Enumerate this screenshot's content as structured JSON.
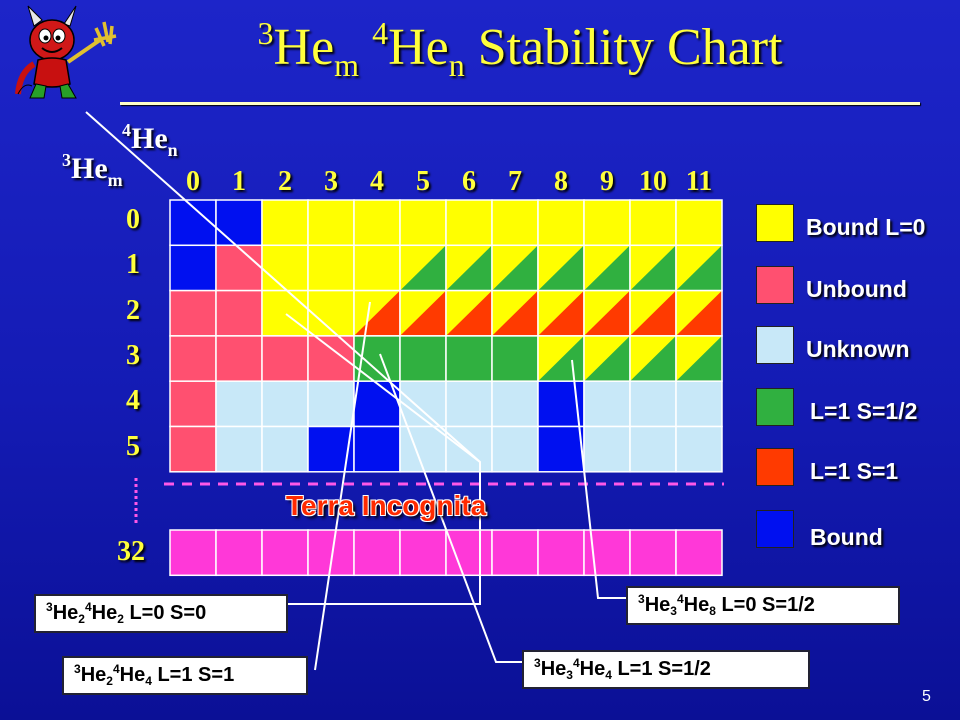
{
  "title": {
    "sup_a": "3",
    "base_a": "He",
    "sub_a": "m",
    "sup_b": "4",
    "base_b": "He",
    "sub_b": "n",
    "rest": " Stability Chart"
  },
  "axis": {
    "col_label": {
      "sup": "4",
      "base": "He",
      "sub": "n"
    },
    "row_label": {
      "sup": "3",
      "base": "He",
      "sub": "m"
    }
  },
  "columns": [
    "0",
    "1",
    "2",
    "3",
    "4",
    "5",
    "6",
    "7",
    "8",
    "9",
    "10",
    "11"
  ],
  "rows": [
    "0",
    "1",
    "2",
    "3",
    "4",
    "5"
  ],
  "extra_row": "32",
  "colors": {
    "Y": "#ffff00",
    "P": "#ff5070",
    "L": "#c8e8f8",
    "G": "#30b040",
    "R": "#ff3a00",
    "B": "#0010f0",
    "M": "#ff38d8",
    "grid": "#ffffff"
  },
  "grid": [
    [
      "B",
      "B",
      "Y",
      "Y",
      "Y",
      "Y",
      "Y",
      "Y",
      "Y",
      "Y",
      "Y",
      "Y"
    ],
    [
      "B",
      "P",
      "Y",
      "Y",
      "Y",
      "YG",
      "YG",
      "YG",
      "YG",
      "YG",
      "YG",
      "YG"
    ],
    [
      "P",
      "P",
      "Y",
      "Y",
      "YR",
      "YR",
      "YR",
      "YR",
      "YR",
      "YR",
      "YR",
      "YR"
    ],
    [
      "P",
      "P",
      "P",
      "P",
      "G",
      "G",
      "G",
      "G",
      "YG",
      "YG",
      "YG",
      "YG"
    ],
    [
      "P",
      "L",
      "L",
      "L",
      "B",
      "L",
      "L",
      "L",
      "B",
      "L",
      "L",
      "L"
    ],
    [
      "P",
      "L",
      "L",
      "B",
      "B",
      "L",
      "L",
      "L",
      "B",
      "L",
      "L",
      "L"
    ]
  ],
  "row32": [
    "M",
    "M",
    "M",
    "M",
    "M",
    "M",
    "M",
    "M",
    "M",
    "M",
    "M",
    "M"
  ],
  "terra_label": "Terra Incognita",
  "legend": [
    {
      "color": "#ffff00",
      "label": "Bound L=0"
    },
    {
      "color": "#ff5070",
      "label": "Unbound"
    },
    {
      "color": "#c8e8f8",
      "label": "Unknown"
    },
    {
      "color": "#30b040",
      "label": "L=1 S=1/2"
    },
    {
      "color": "#ff3a00",
      "label": "L=1 S=1"
    },
    {
      "color": "#0010f0",
      "label": "Bound"
    }
  ],
  "callouts": [
    {
      "m": "2",
      "n": "2",
      "label": "L=0 S=0"
    },
    {
      "m": "2",
      "n": "4",
      "label": "L=1 S=1"
    },
    {
      "m": "3",
      "n": "4",
      "label": "L=1 S=1/2"
    },
    {
      "m": "3",
      "n": "8",
      "label": "L=0 S=1/2"
    }
  ],
  "slide_number": "5",
  "mascot_icon": "devil-mascot-icon"
}
